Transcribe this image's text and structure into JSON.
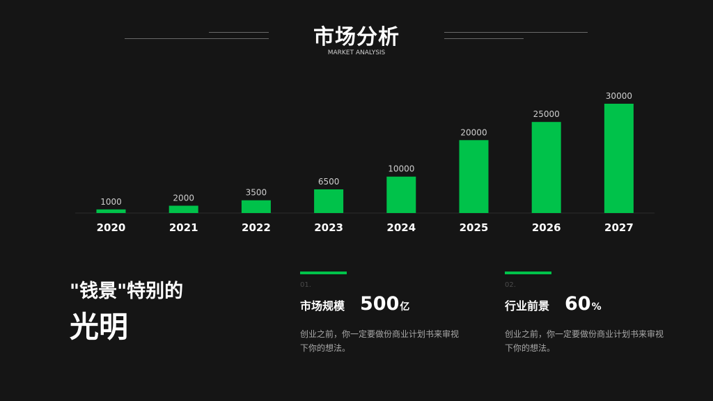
{
  "header": {
    "title": "市场分析",
    "subtitle": "MARKET ANALYSIS"
  },
  "colors": {
    "accent": "#00c24a",
    "background": "#151515",
    "text": "#ffffff",
    "muted": "#a9a9a9"
  },
  "chart_data": {
    "type": "bar",
    "categories": [
      "2020",
      "2021",
      "2022",
      "2023",
      "2024",
      "2025",
      "2026",
      "2027"
    ],
    "values": [
      1000,
      2000,
      3500,
      6500,
      10000,
      20000,
      25000,
      30000
    ],
    "value_labels": [
      "1000",
      "2000",
      "3500",
      "6500",
      "10000",
      "20000",
      "25000",
      "30000"
    ],
    "title": "",
    "xlabel": "",
    "ylabel": "",
    "ylim": [
      0,
      30000
    ],
    "grid": false,
    "color": "#00c24a"
  },
  "headline": {
    "line1": "\"钱景\"特别的",
    "line2": "光明"
  },
  "stats": [
    {
      "number": "01.",
      "label": "市场规模",
      "value": "500",
      "unit": "亿",
      "desc": "创业之前，你一定要做份商业计划书来审视下你的想法。"
    },
    {
      "number": "02.",
      "label": "行业前景",
      "value": "60",
      "unit": "%",
      "desc": "创业之前，你一定要做份商业计划书来审视下你的想法。"
    }
  ]
}
